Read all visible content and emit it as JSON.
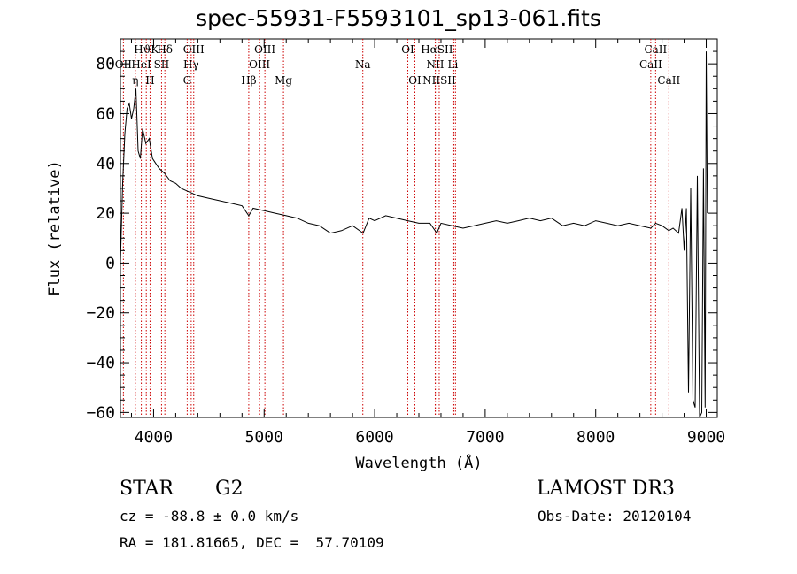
{
  "title": "spec-55931-F5593101_sp13-061.fits",
  "chart_data": {
    "type": "line",
    "xlabel": "Wavelength (Å)",
    "ylabel": "Flux (relative)",
    "xlim": [
      3700,
      9100
    ],
    "ylim": [
      -62,
      90
    ],
    "x_ticks": [
      "4000",
      "5000",
      "6000",
      "7000",
      "8000",
      "9000"
    ],
    "y_ticks": [
      "-60",
      "-40",
      "-20",
      "0",
      "20",
      "40",
      "60",
      "80"
    ],
    "grid": false,
    "series": [
      {
        "x": [
          3700,
          3720,
          3740,
          3760,
          3780,
          3800,
          3820,
          3840,
          3860,
          3880,
          3900,
          3930,
          3960,
          3990,
          4020,
          4050,
          4100,
          4150,
          4200,
          4250,
          4300,
          4350,
          4400,
          4500,
          4600,
          4700,
          4800,
          4861,
          4900,
          5000,
          5100,
          5200,
          5300,
          5400,
          5500,
          5600,
          5700,
          5800,
          5895,
          5950,
          6000,
          6100,
          6200,
          6300,
          6400,
          6500,
          6563,
          6600,
          6700,
          6800,
          6900,
          7000,
          7100,
          7200,
          7300,
          7400,
          7500,
          7600,
          7700,
          7800,
          7900,
          8000,
          8100,
          8200,
          8300,
          8400,
          8498,
          8542,
          8600,
          8662,
          8700,
          8750,
          8780,
          8800,
          8820,
          8840,
          8860,
          8880,
          8900,
          8920,
          8940,
          8960,
          8975,
          8990,
          9000,
          9010
        ],
        "y": [
          0,
          32,
          52,
          62,
          64,
          58,
          62,
          70,
          45,
          42,
          54,
          48,
          50,
          42,
          40,
          38,
          36,
          33,
          32,
          30,
          29,
          28,
          27,
          26,
          25,
          24,
          23,
          19,
          22,
          21,
          20,
          19,
          18,
          16,
          15,
          12,
          13,
          15,
          12,
          18,
          17,
          19,
          18,
          17,
          16,
          16,
          12,
          16,
          15,
          14,
          15,
          16,
          17,
          16,
          17,
          18,
          17,
          18,
          15,
          16,
          15,
          17,
          16,
          15,
          16,
          15,
          14,
          16,
          15,
          13,
          14,
          12,
          22,
          5,
          22,
          -52,
          30,
          -55,
          -58,
          35,
          -62,
          -60,
          38,
          -58,
          85,
          20
        ]
      }
    ],
    "line_labels": [
      {
        "label": "HϑK",
        "x": 3934,
        "row": 0
      },
      {
        "label": "OII",
        "x": 3727,
        "row": 1
      },
      {
        "label": "HeI",
        "x": 3889,
        "row": 1
      },
      {
        "label": "SII",
        "x": 4072,
        "row": 1
      },
      {
        "label": "η",
        "x": 3835,
        "row": 2
      },
      {
        "label": "H",
        "x": 3968,
        "row": 2
      },
      {
        "label": "Hδ",
        "x": 4102,
        "row": 0
      },
      {
        "label": "OIII",
        "x": 4363,
        "row": 0
      },
      {
        "label": "Hγ",
        "x": 4340,
        "row": 1
      },
      {
        "label": "G",
        "x": 4304,
        "row": 2
      },
      {
        "label": "OIII",
        "x": 5007,
        "row": 0
      },
      {
        "label": "OIII",
        "x": 4959,
        "row": 1
      },
      {
        "label": "Hβ",
        "x": 4861,
        "row": 2
      },
      {
        "label": "Mg",
        "x": 5175,
        "row": 2
      },
      {
        "label": "Na",
        "x": 5893,
        "row": 1
      },
      {
        "label": "OI",
        "x": 6300,
        "row": 0
      },
      {
        "label": "OI",
        "x": 6364,
        "row": 2
      },
      {
        "label": "HαSII",
        "x": 6563,
        "row": 0
      },
      {
        "label": "NII",
        "x": 6548,
        "row": 1
      },
      {
        "label": "Li",
        "x": 6708,
        "row": 1
      },
      {
        "label": "NIISII",
        "x": 6584,
        "row": 2
      },
      {
        "label": "CaII",
        "x": 8542,
        "row": 0
      },
      {
        "label": "CaII",
        "x": 8498,
        "row": 1
      },
      {
        "label": "CaII",
        "x": 8662,
        "row": 2
      }
    ],
    "line_marks": [
      3727,
      3835,
      3889,
      3934,
      3968,
      4072,
      4102,
      4304,
      4340,
      4363,
      4861,
      4959,
      5007,
      5175,
      5893,
      6300,
      6364,
      6548,
      6563,
      6584,
      6708,
      6716,
      6731,
      8498,
      8542,
      8662
    ]
  },
  "info": {
    "object_type": "STAR",
    "subclass": "G2",
    "survey": "LAMOST DR3",
    "cz": "cz = -88.8 ± 0.0 km/s",
    "obs_date": "Obs-Date: 20120104",
    "coords": "RA = 181.81665, DEC =  57.70109"
  },
  "colors": {
    "axis": "#000000",
    "spectrum": "#000000",
    "line_marker": "#cc0000"
  }
}
